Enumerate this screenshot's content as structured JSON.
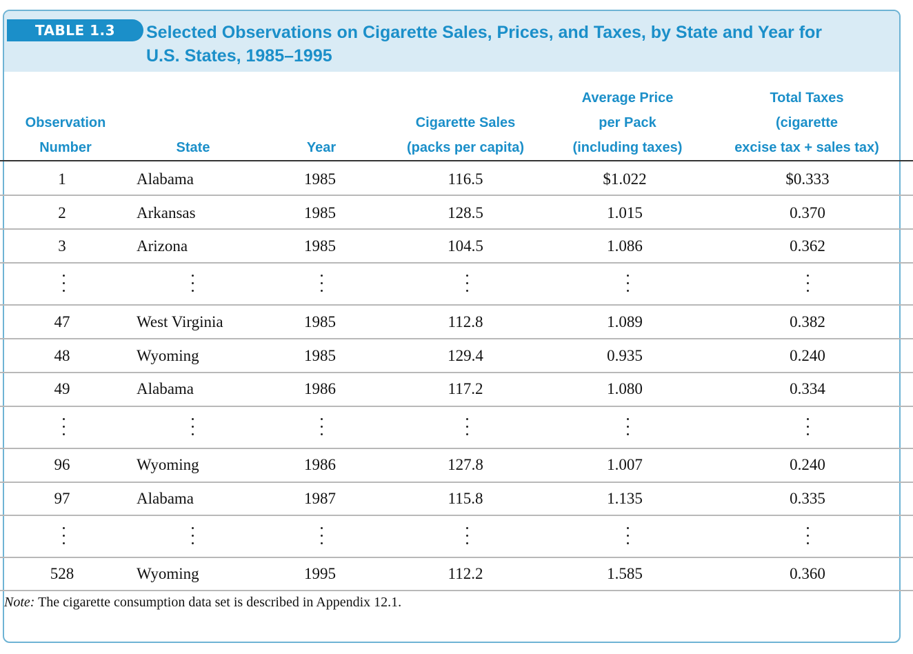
{
  "table": {
    "label": "TABLE 1.3",
    "caption_line1": "Selected Observations on Cigarette Sales, Prices, and Taxes, by State and Year for",
    "caption_line2": "U.S. States, 1985–1995",
    "headers": {
      "obs": [
        "Observation",
        "Number"
      ],
      "state": [
        "State"
      ],
      "year": [
        "Year"
      ],
      "sales": [
        "Cigarette Sales",
        "(packs per capita)"
      ],
      "price": [
        "Average Price",
        "per Pack",
        "(including taxes)"
      ],
      "tax": [
        "Total Taxes",
        "(cigarette",
        "excise tax + sales tax)"
      ]
    },
    "rows": [
      {
        "obs": "1",
        "state": "Alabama",
        "year": "1985",
        "sales": "116.5",
        "price": "$1.022",
        "tax": "$0.333"
      },
      {
        "obs": "2",
        "state": "Arkansas",
        "year": "1985",
        "sales": "128.5",
        "price": "1.015",
        "tax": "0.370"
      },
      {
        "obs": "3",
        "state": "Arizona",
        "year": "1985",
        "sales": "104.5",
        "price": "1.086",
        "tax": "0.362"
      },
      {
        "obs": "47",
        "state": "West Virginia",
        "year": "1985",
        "sales": "112.8",
        "price": "1.089",
        "tax": "0.382"
      },
      {
        "obs": "48",
        "state": "Wyoming",
        "year": "1985",
        "sales": "129.4",
        "price": "0.935",
        "tax": "0.240"
      },
      {
        "obs": "49",
        "state": "Alabama",
        "year": "1986",
        "sales": "117.2",
        "price": "1.080",
        "tax": "0.334"
      },
      {
        "obs": "96",
        "state": "Wyoming",
        "year": "1986",
        "sales": "127.8",
        "price": "1.007",
        "tax": "0.240"
      },
      {
        "obs": "97",
        "state": "Alabama",
        "year": "1987",
        "sales": "115.8",
        "price": "1.135",
        "tax": "0.335"
      },
      {
        "obs": "528",
        "state": "Wyoming",
        "year": "1995",
        "sales": "112.2",
        "price": "1.585",
        "tax": "0.360"
      }
    ],
    "note_label": "Note:",
    "note_text": " The cigarette consumption data set is described in Appendix 12.1."
  },
  "colors": {
    "accent": "#1b8fc9",
    "header_band": "#d9ebf5",
    "frame": "#6eb3d4"
  }
}
